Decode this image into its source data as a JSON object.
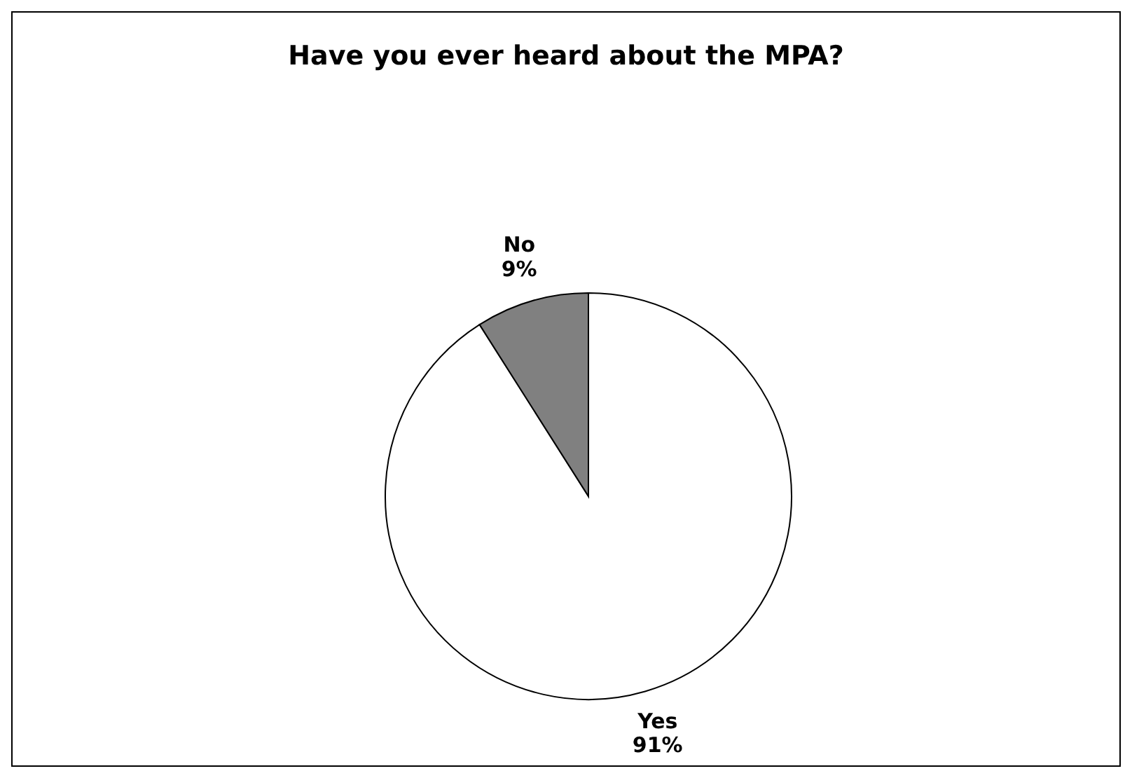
{
  "chart_data": {
    "type": "pie",
    "title": "Have you ever heard about the MPA?",
    "categories": [
      "Yes",
      "No"
    ],
    "values": [
      91,
      9
    ],
    "value_labels": [
      "91%",
      "9%"
    ],
    "colors": [
      "#ffffff",
      "#808080"
    ],
    "legend": false
  }
}
